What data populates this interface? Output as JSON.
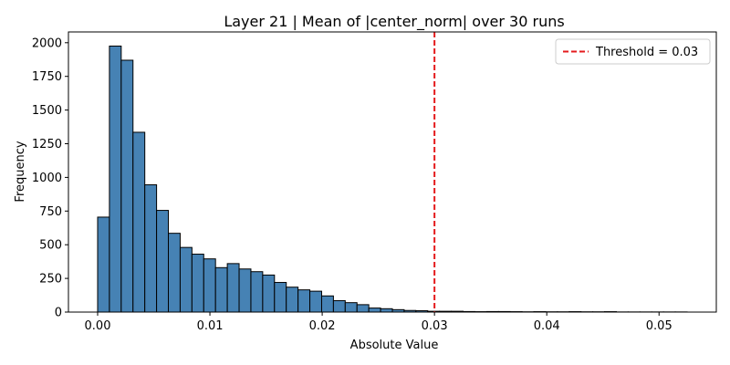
{
  "chart_data": {
    "type": "bar",
    "title": "Layer 21 | Mean of |center_norm| over 30 runs",
    "xlabel": "Absolute Value",
    "ylabel": "Frequency",
    "xlim": [
      -0.0026,
      0.0551
    ],
    "ylim": [
      0,
      2080
    ],
    "xticks": [
      0.0,
      0.01,
      0.02,
      0.03,
      0.04,
      0.05
    ],
    "xtick_labels": [
      "0.00",
      "0.01",
      "0.02",
      "0.03",
      "0.04",
      "0.05"
    ],
    "yticks": [
      0,
      250,
      500,
      750,
      1000,
      1250,
      1500,
      1750,
      2000
    ],
    "ytick_labels": [
      "0",
      "250",
      "500",
      "750",
      "1000",
      "1250",
      "1500",
      "1750",
      "2000"
    ],
    "bin_start": 0.0,
    "bin_width": 0.00105,
    "bin_counts": [
      705,
      1975,
      1870,
      1335,
      945,
      755,
      585,
      480,
      430,
      395,
      330,
      360,
      320,
      300,
      275,
      220,
      185,
      165,
      155,
      120,
      85,
      70,
      55,
      30,
      25,
      18,
      12,
      10,
      6,
      6,
      6,
      4,
      3,
      4,
      4,
      3,
      2,
      3,
      2,
      2,
      3,
      2,
      2,
      3,
      1,
      1,
      1,
      1,
      1,
      1
    ],
    "bar_color": "#4682b4",
    "edge_color": "#000000",
    "threshold": {
      "value": 0.03,
      "label": "Threshold = 0.03",
      "color": "#e41a1c",
      "style": "dashed"
    },
    "legend_position": "top-right",
    "grid": false
  }
}
